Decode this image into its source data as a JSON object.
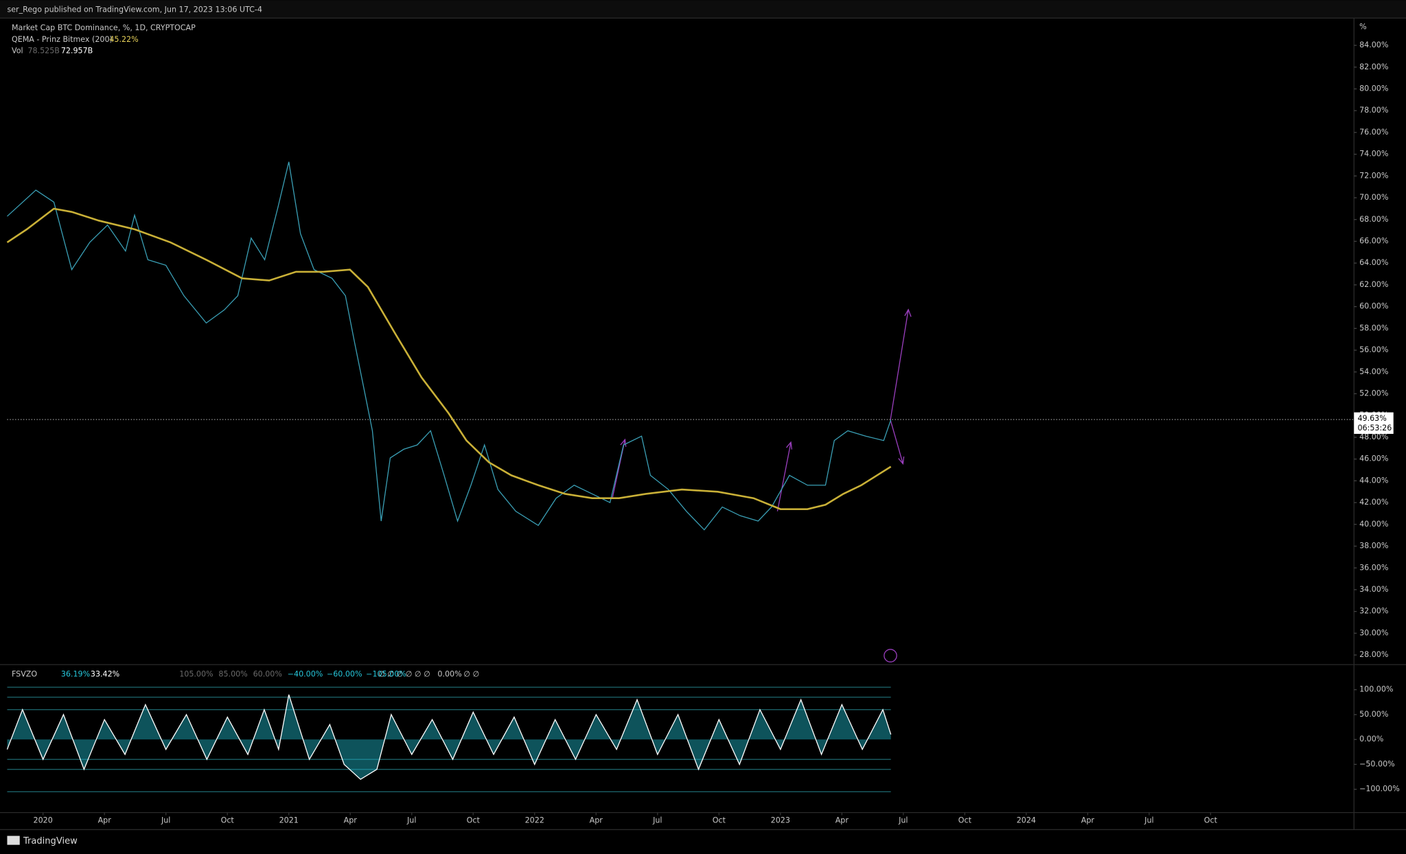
{
  "header": {
    "published": "ser_Rego published on TradingView.com, Jun 17, 2023 13:06 UTC-4"
  },
  "footer": {
    "brand": "TradingView"
  },
  "chart_data": [
    {
      "type": "line",
      "unit": "%",
      "xlim": [
        -1.75,
        64
      ],
      "ylim": [
        27.2,
        86.5
      ],
      "xticks": [
        {
          "value": 0,
          "label": "2020"
        },
        {
          "value": 3,
          "label": "Apr"
        },
        {
          "value": 6,
          "label": "Jul"
        },
        {
          "value": 9,
          "label": "Oct"
        },
        {
          "value": 12,
          "label": "2021"
        },
        {
          "value": 15,
          "label": "Apr"
        },
        {
          "value": 18,
          "label": "Jul"
        },
        {
          "value": 21,
          "label": "Oct"
        },
        {
          "value": 24,
          "label": "2022"
        },
        {
          "value": 27,
          "label": "Apr"
        },
        {
          "value": 30,
          "label": "Jul"
        },
        {
          "value": 33,
          "label": "Oct"
        },
        {
          "value": 36,
          "label": "2023"
        },
        {
          "value": 39,
          "label": "Apr"
        },
        {
          "value": 42,
          "label": "Jul"
        },
        {
          "value": 45,
          "label": "Oct"
        },
        {
          "value": 48,
          "label": "2024"
        },
        {
          "value": 51,
          "label": "Apr"
        },
        {
          "value": 54,
          "label": "Jul"
        },
        {
          "value": 57,
          "label": "Oct"
        }
      ],
      "yticks": [
        {
          "value": 28,
          "label": "28.00%"
        },
        {
          "value": 30,
          "label": "30.00%"
        },
        {
          "value": 32,
          "label": "32.00%"
        },
        {
          "value": 34,
          "label": "34.00%"
        },
        {
          "value": 36,
          "label": "36.00%"
        },
        {
          "value": 38,
          "label": "38.00%"
        },
        {
          "value": 40,
          "label": "40.00%"
        },
        {
          "value": 42,
          "label": "42.00%"
        },
        {
          "value": 44,
          "label": "44.00%"
        },
        {
          "value": 46,
          "label": "46.00%"
        },
        {
          "value": 48,
          "label": "48.00%"
        },
        {
          "value": 50,
          "label": "50.00%"
        },
        {
          "value": 52,
          "label": "52.00%"
        },
        {
          "value": 54,
          "label": "54.00%"
        },
        {
          "value": 56,
          "label": "56.00%"
        },
        {
          "value": 58,
          "label": "58.00%"
        },
        {
          "value": 60,
          "label": "60.00%"
        },
        {
          "value": 62,
          "label": "62.00%"
        },
        {
          "value": 64,
          "label": "64.00%"
        },
        {
          "value": 66,
          "label": "66.00%"
        },
        {
          "value": 68,
          "label": "68.00%"
        },
        {
          "value": 70,
          "label": "70.00%"
        },
        {
          "value": 72,
          "label": "72.00%"
        },
        {
          "value": 74,
          "label": "74.00%"
        },
        {
          "value": 76,
          "label": "76.00%"
        },
        {
          "value": 78,
          "label": "78.00%"
        },
        {
          "value": 80,
          "label": "80.00%"
        },
        {
          "value": 82,
          "label": "82.00%"
        },
        {
          "value": 84,
          "label": "84.00%"
        }
      ],
      "last_price": {
        "value": 49.63,
        "label": "49.63%",
        "countdown": "06:53:26"
      },
      "volume_legend": {
        "name": "Vol",
        "first": "78.525B",
        "second": "72.957B"
      },
      "series": [
        {
          "name": "Market Cap BTC Dominance, %, 1D, CRYPTOCAP",
          "color": "#3a9fb5",
          "x": [
            -1.75,
            -0.35,
            0.53,
            1.4,
            2.28,
            3.15,
            4.03,
            4.47,
            5.12,
            6.0,
            6.88,
            7.97,
            8.85,
            9.51,
            10.16,
            10.82,
            11.48,
            12.0,
            12.57,
            13.23,
            14.11,
            14.76,
            15.2,
            15.64,
            16.08,
            16.51,
            16.95,
            17.61,
            18.27,
            18.92,
            19.58,
            20.24,
            20.89,
            21.55,
            22.21,
            23.08,
            24.18,
            25.05,
            25.93,
            26.81,
            27.68,
            28.34,
            29.22,
            29.65,
            30.53,
            31.41,
            32.28,
            33.16,
            34.03,
            34.91,
            35.57,
            36.44,
            37.32,
            38.2,
            38.63,
            39.29,
            40.17,
            41.04,
            41.39
          ],
          "values": [
            68.3,
            70.7,
            69.6,
            63.4,
            65.9,
            67.5,
            65.1,
            68.4,
            64.3,
            63.8,
            61.0,
            58.5,
            59.7,
            61.0,
            66.3,
            64.3,
            69.2,
            73.3,
            66.7,
            63.4,
            62.6,
            61.0,
            56.8,
            52.7,
            48.6,
            40.3,
            46.1,
            46.9,
            47.3,
            48.6,
            44.5,
            40.3,
            43.6,
            47.3,
            43.2,
            41.2,
            39.9,
            42.4,
            43.6,
            42.8,
            42.0,
            47.3,
            48.1,
            44.5,
            43.2,
            41.2,
            39.5,
            41.6,
            40.8,
            40.3,
            41.6,
            44.5,
            43.6,
            43.6,
            47.7,
            48.6,
            48.1,
            47.7,
            49.6
          ]
        },
        {
          "name": "QEMA - Prinz Bitmex (200)",
          "color": "#c9b037",
          "legend_value": "45.22%",
          "x": [
            -1.75,
            -0.79,
            0.53,
            1.4,
            2.72,
            4.47,
            6.22,
            7.97,
            9.72,
            11.04,
            12.35,
            13.67,
            14.98,
            15.86,
            17.17,
            18.48,
            19.8,
            20.67,
            21.77,
            22.86,
            24.18,
            25.49,
            26.81,
            28.12,
            29.43,
            31.19,
            32.94,
            34.69,
            36.0,
            37.32,
            38.2,
            39.07,
            39.95,
            41.39
          ],
          "values": [
            65.9,
            67.1,
            69.0,
            68.7,
            67.9,
            67.1,
            65.9,
            64.3,
            62.6,
            62.4,
            63.2,
            63.2,
            63.4,
            61.8,
            57.6,
            53.5,
            50.2,
            47.7,
            45.7,
            44.5,
            43.6,
            42.8,
            42.4,
            42.4,
            42.8,
            43.2,
            43.0,
            42.4,
            41.4,
            41.4,
            41.8,
            42.8,
            43.6,
            45.3
          ]
        }
      ]
    },
    {
      "type": "line",
      "ylim": [
        -145,
        148.6
      ],
      "yticks": [
        {
          "value": 100,
          "label": "100.00%"
        },
        {
          "value": 50,
          "label": "50.00%"
        },
        {
          "value": 0,
          "label": "0.00%"
        },
        {
          "value": -50,
          "label": "−50.00%"
        },
        {
          "value": -100,
          "label": "−100.00%"
        }
      ],
      "legend": {
        "name": "FSVZO",
        "first": "36.19%",
        "second": "33.42%",
        "empty_a": "∅ ∅ ∅ ∅ ∅ ∅",
        "zero": "0.00%",
        "empty_b": "∅ ∅"
      },
      "levels": [
        {
          "value": 105,
          "label": "105.00%"
        },
        {
          "value": 85,
          "label": "85.00%"
        },
        {
          "value": 60,
          "label": "60.00%"
        },
        {
          "value": -40,
          "label": "−40.00%"
        },
        {
          "value": -60,
          "label": "−60.00%"
        },
        {
          "value": -105,
          "label": "−105.00%"
        }
      ],
      "series": [
        {
          "name": "FSVZO",
          "color": "#ffffff",
          "fill": "#1fb8c9",
          "x": [
            -1.75,
            -1,
            0,
            1,
            2,
            3,
            4,
            5,
            6,
            7,
            8,
            9,
            10,
            10.8,
            11.5,
            12,
            13,
            14,
            14.7,
            15.5,
            16.3,
            17,
            18,
            19,
            20,
            21,
            22,
            23,
            24,
            25,
            26,
            27,
            28,
            29,
            30,
            31,
            32,
            33,
            34,
            35,
            36,
            37,
            38,
            39,
            40,
            41,
            41.39
          ],
          "values": [
            -20,
            60,
            -40,
            50,
            -60,
            40,
            -30,
            70,
            -20,
            50,
            -40,
            45,
            -30,
            60,
            -20,
            90,
            -40,
            30,
            -50,
            -80,
            -60,
            50,
            -30,
            40,
            -40,
            55,
            -30,
            45,
            -50,
            40,
            -40,
            50,
            -20,
            80,
            -30,
            50,
            -60,
            40,
            -50,
            60,
            -20,
            80,
            -30,
            70,
            -20,
            60,
            10
          ]
        }
      ]
    }
  ]
}
